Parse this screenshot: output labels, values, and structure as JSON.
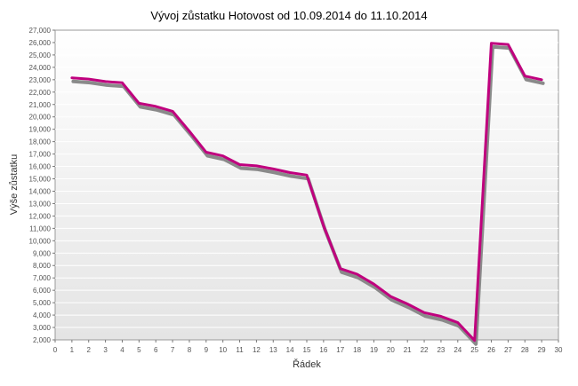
{
  "chart_data": {
    "type": "line",
    "title": "Vývoj zůstatku Hotovost od 10.09.2014 do 11.10.2014",
    "xlabel": "Řádek",
    "ylabel": "Výše zůstatku",
    "xlim": [
      0,
      30
    ],
    "ylim": [
      2000,
      27000
    ],
    "x_ticks": [
      "0",
      "1",
      "2",
      "3",
      "4",
      "5",
      "6",
      "7",
      "8",
      "9",
      "10",
      "11",
      "12",
      "13",
      "14",
      "15",
      "16",
      "17",
      "18",
      "19",
      "20",
      "21",
      "22",
      "23",
      "24",
      "25",
      "26",
      "27",
      "28",
      "29",
      "30"
    ],
    "y_ticks": [
      "2,000",
      "3,000",
      "4,000",
      "5,000",
      "6,000",
      "7,000",
      "8,000",
      "9,000",
      "10,000",
      "11,000",
      "12,000",
      "13,000",
      "14,000",
      "15,000",
      "16,000",
      "17,000",
      "18,000",
      "19,000",
      "20,000",
      "21,000",
      "22,000",
      "23,000",
      "24,000",
      "25,000",
      "26,000",
      "27,000"
    ],
    "grid": true,
    "legend": "none",
    "x": [
      1,
      2,
      3,
      4,
      5,
      6,
      7,
      8,
      9,
      10,
      11,
      12,
      13,
      14,
      15,
      16,
      17,
      18,
      19,
      20,
      21,
      22,
      23,
      24,
      25,
      26,
      27,
      28,
      29
    ],
    "series": [
      {
        "color": "#c0007e",
        "values": [
          23150,
          23050,
          22850,
          22750,
          21100,
          20850,
          20450,
          18850,
          17150,
          16850,
          16150,
          16050,
          15800,
          15500,
          15300,
          11200,
          7750,
          7300,
          6500,
          5500,
          4900,
          4200,
          3900,
          3400,
          1950,
          25950,
          25850,
          23300,
          23000
        ]
      }
    ],
    "shadow_color": "#8a8a8a"
  }
}
